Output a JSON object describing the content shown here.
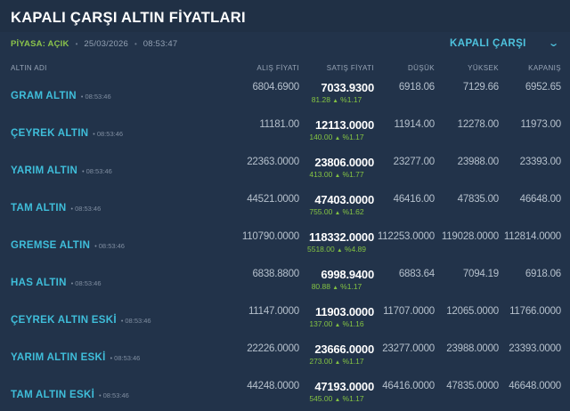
{
  "header": {
    "title": "KAPALI ÇARŞI ALTIN FİYATLARI"
  },
  "status": {
    "market_label": "PİYASA: AÇIK",
    "date": "25/03/2026",
    "time": "08:53:47",
    "selector_label": "KAPALI ÇARŞI"
  },
  "icons": {
    "chevron_down": "⌄",
    "up_triangle": "▲",
    "dot_separator": "•"
  },
  "colors": {
    "background": "#22334a",
    "accent_cyan": "#3fbeda",
    "positive_green": "#84c342",
    "sell_white": "#ffffff"
  },
  "table": {
    "columns": [
      "ALTIN ADI",
      "ALIŞ FİYATI",
      "SATIŞ FİYATI",
      "DÜŞÜK",
      "YÜKSEK",
      "KAPANIŞ"
    ],
    "rows": [
      {
        "name": "GRAM ALTIN",
        "time": "08:53:46",
        "buy": "6804.6900",
        "sell": "7033.9300",
        "change": "81.28",
        "change_pct": "%1.17",
        "low": "6918.06",
        "high": "7129.66",
        "close": "6952.65"
      },
      {
        "name": "ÇEYREK ALTIN",
        "time": "08:53:46",
        "buy": "11181.00",
        "sell": "12113.0000",
        "change": "140.00",
        "change_pct": "%1.17",
        "low": "11914.00",
        "high": "12278.00",
        "close": "11973.00"
      },
      {
        "name": "YARIM ALTIN",
        "time": "08:53:46",
        "buy": "22363.0000",
        "sell": "23806.0000",
        "change": "413.00",
        "change_pct": "%1.77",
        "low": "23277.00",
        "high": "23988.00",
        "close": "23393.00"
      },
      {
        "name": "TAM ALTIN",
        "time": "08:53:46",
        "buy": "44521.0000",
        "sell": "47403.0000",
        "change": "755.00",
        "change_pct": "%1.62",
        "low": "46416.00",
        "high": "47835.00",
        "close": "46648.00"
      },
      {
        "name": "GREMSE ALTIN",
        "time": "08:53:46",
        "buy": "110790.0000",
        "sell": "118332.0000",
        "change": "5518.00",
        "change_pct": "%4.89",
        "low": "112253.0000",
        "high": "119028.0000",
        "close": "112814.0000"
      },
      {
        "name": "HAS ALTIN",
        "time": "08:53:46",
        "buy": "6838.8800",
        "sell": "6998.9400",
        "change": "80.88",
        "change_pct": "%1.17",
        "low": "6883.64",
        "high": "7094.19",
        "close": "6918.06"
      },
      {
        "name": "ÇEYREK ALTIN ESKİ",
        "time": "08:53:46",
        "buy": "11147.0000",
        "sell": "11903.0000",
        "change": "137.00",
        "change_pct": "%1.16",
        "low": "11707.0000",
        "high": "12065.0000",
        "close": "11766.0000"
      },
      {
        "name": "YARIM ALTIN ESKİ",
        "time": "08:53:46",
        "buy": "22226.0000",
        "sell": "23666.0000",
        "change": "273.00",
        "change_pct": "%1.17",
        "low": "23277.0000",
        "high": "23988.0000",
        "close": "23393.0000"
      },
      {
        "name": "TAM ALTIN ESKİ",
        "time": "08:53:46",
        "buy": "44248.0000",
        "sell": "47193.0000",
        "change": "545.00",
        "change_pct": "%1.17",
        "low": "46416.0000",
        "high": "47835.0000",
        "close": "46648.0000"
      }
    ]
  }
}
